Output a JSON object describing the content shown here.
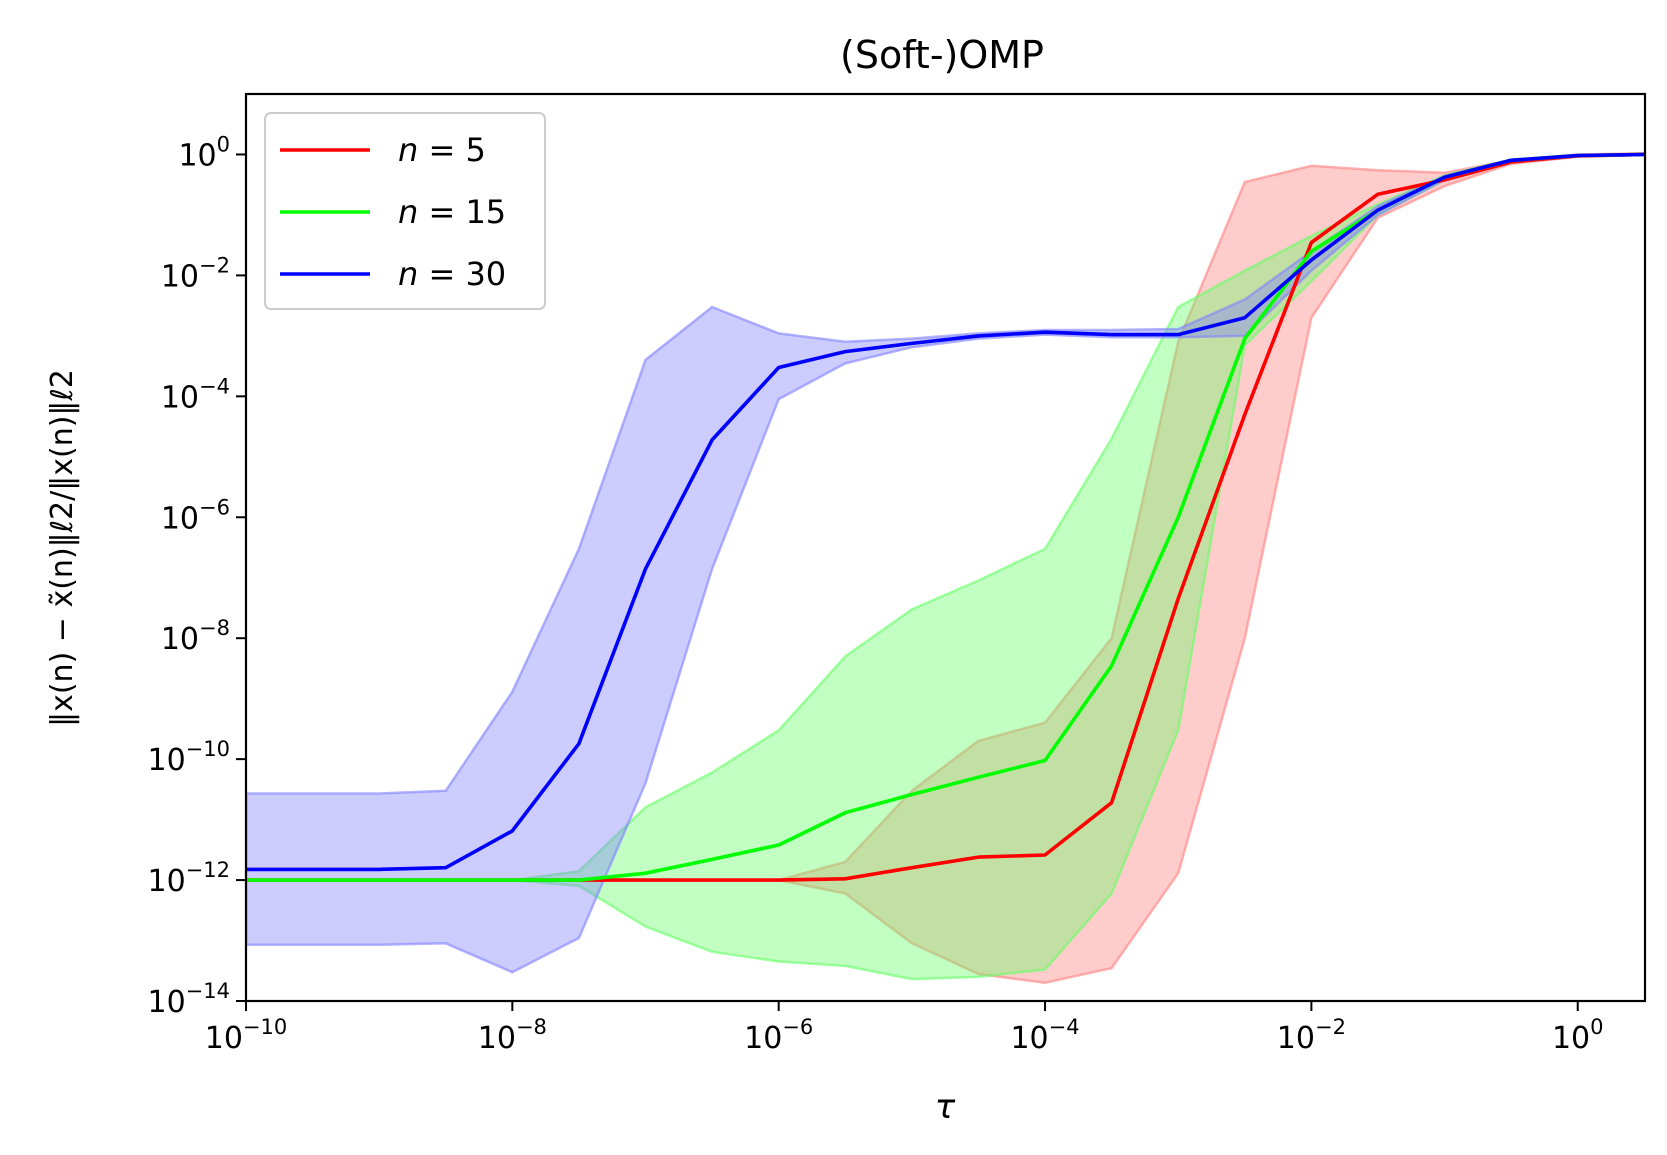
{
  "chart_data": {
    "type": "line",
    "title": "(Soft-)OMP",
    "xlabel": "τ",
    "ylabel": "‖x(n) − x̃(n)‖ℓ2/‖x(n)‖ℓ2",
    "xscale": "log",
    "yscale": "log",
    "xlim": [
      1e-10,
      3.2
    ],
    "ylim": [
      1e-14,
      10
    ],
    "xticks": [
      {
        "value": 1e-10,
        "base": "10",
        "exp": "−10"
      },
      {
        "value": 1e-08,
        "base": "10",
        "exp": "−8"
      },
      {
        "value": 1e-06,
        "base": "10",
        "exp": "−6"
      },
      {
        "value": 0.0001,
        "base": "10",
        "exp": "−4"
      },
      {
        "value": 0.01,
        "base": "10",
        "exp": "−2"
      },
      {
        "value": 1,
        "base": "10",
        "exp": "0"
      }
    ],
    "yticks": [
      {
        "value": 1e-14,
        "base": "10",
        "exp": "−14"
      },
      {
        "value": 1e-12,
        "base": "10",
        "exp": "−12"
      },
      {
        "value": 1e-10,
        "base": "10",
        "exp": "−10"
      },
      {
        "value": 1e-08,
        "base": "10",
        "exp": "−8"
      },
      {
        "value": 1e-06,
        "base": "10",
        "exp": "−6"
      },
      {
        "value": 0.0001,
        "base": "10",
        "exp": "−4"
      },
      {
        "value": 0.01,
        "base": "10",
        "exp": "−2"
      },
      {
        "value": 1,
        "base": "10",
        "exp": "0"
      }
    ],
    "grid": false,
    "legend_position": "top-left",
    "x": [
      1e-10,
      1e-09,
      3.16e-09,
      1e-08,
      3.16e-08,
      1e-07,
      3.16e-07,
      1e-06,
      3.16e-06,
      1e-05,
      3.16e-05,
      0.0001,
      0.000316,
      0.001,
      0.00316,
      0.01,
      0.0316,
      0.1,
      0.316,
      1,
      3.16
    ],
    "series": [
      {
        "name": "n = 5",
        "legend_var": "n",
        "legend_val": "5",
        "color": "#ff0000",
        "band_color": "#ff8080",
        "values": [
          1e-12,
          1e-12,
          1e-12,
          1e-12,
          1e-12,
          1e-12,
          1e-12,
          1e-12,
          1.05e-12,
          1.6e-12,
          2.4e-12,
          2.6e-12,
          1.9e-11,
          4.5e-08,
          5e-05,
          0.035,
          0.22,
          0.38,
          0.75,
          0.95,
          1.0
        ],
        "upper": [
          1e-12,
          1e-12,
          1e-12,
          1e-12,
          1e-12,
          1e-12,
          1e-12,
          1e-12,
          2e-12,
          3e-11,
          2e-10,
          4e-10,
          1e-08,
          0.0008,
          0.35,
          0.65,
          0.55,
          0.5,
          0.8,
          1.0,
          1.05
        ],
        "lower": [
          1e-12,
          1e-12,
          1e-12,
          1e-12,
          1e-12,
          1e-12,
          1e-12,
          1e-12,
          6e-13,
          9e-14,
          2.8e-14,
          2e-14,
          3.5e-14,
          1.3e-12,
          1e-08,
          0.002,
          0.09,
          0.3,
          0.7,
          0.92,
          0.98
        ]
      },
      {
        "name": "n = 15",
        "legend_var": "n",
        "legend_val": "15",
        "color": "#00ff00",
        "band_color": "#66ff66",
        "values": [
          1e-12,
          1e-12,
          1e-12,
          1e-12,
          1e-12,
          1.3e-12,
          2.2e-12,
          3.8e-12,
          1.3e-11,
          2.6e-11,
          5e-11,
          9.5e-11,
          3.5e-09,
          1e-06,
          0.0009,
          0.025,
          0.12,
          0.42,
          0.8,
          0.96,
          1.0
        ],
        "upper": [
          1e-12,
          1e-12,
          1e-12,
          1e-12,
          1.4e-12,
          1.6e-11,
          6e-11,
          3e-10,
          5e-09,
          3e-08,
          9e-08,
          3e-07,
          2e-05,
          0.003,
          0.012,
          0.045,
          0.15,
          0.45,
          0.82,
          0.98,
          1.02
        ],
        "lower": [
          1e-12,
          1e-12,
          1e-12,
          1e-12,
          8e-13,
          1.7e-13,
          6.5e-14,
          4.5e-14,
          3.8e-14,
          2.3e-14,
          2.5e-14,
          3.3e-14,
          6e-13,
          3e-10,
          0.0007,
          0.008,
          0.1,
          0.38,
          0.75,
          0.93,
          0.98
        ]
      },
      {
        "name": "n = 30",
        "legend_var": "n",
        "legend_val": "30",
        "color": "#0000ff",
        "band_color": "#8080ff",
        "values": [
          1.5e-12,
          1.5e-12,
          1.6e-12,
          6.5e-12,
          1.8e-10,
          1.4e-07,
          1.9e-05,
          0.0003,
          0.00055,
          0.00075,
          0.001,
          0.00115,
          0.00105,
          0.00105,
          0.002,
          0.018,
          0.12,
          0.42,
          0.8,
          0.96,
          1.0
        ],
        "upper": [
          2.7e-11,
          2.7e-11,
          3e-11,
          1.3e-09,
          3e-07,
          0.0004,
          0.003,
          0.0011,
          0.0008,
          0.0009,
          0.0011,
          0.00125,
          0.00125,
          0.0013,
          0.004,
          0.025,
          0.14,
          0.44,
          0.82,
          0.98,
          1.02
        ],
        "lower": [
          8.5e-14,
          8.5e-14,
          9e-14,
          3e-14,
          1.1e-13,
          4e-11,
          1.4e-07,
          9e-05,
          0.00035,
          0.00065,
          0.0009,
          0.00105,
          0.00095,
          0.00095,
          0.001,
          0.012,
          0.1,
          0.38,
          0.75,
          0.93,
          0.98
        ]
      }
    ]
  }
}
